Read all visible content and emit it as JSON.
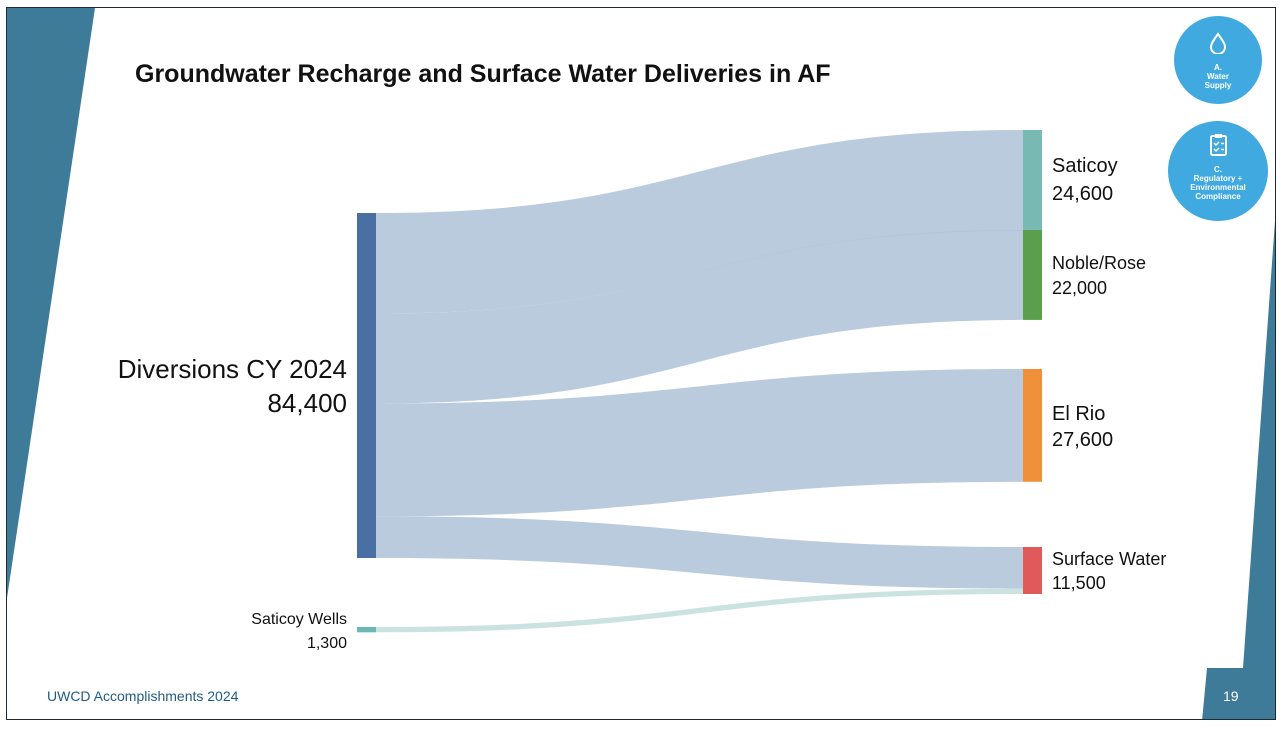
{
  "title": "Groundwater Recharge and Surface Water Deliveries in AF",
  "badges": [
    {
      "icon": "water-drop-icon",
      "letter": "A.",
      "text_line1": "Water",
      "text_line2": "Supply",
      "color": "#3fa9e0"
    },
    {
      "icon": "clipboard-checklist-icon",
      "letter": "C.",
      "text_line1": "Regulatory +",
      "text_line2": "Environmental",
      "text_line3": "Compliance",
      "color": "#3fa9e0"
    }
  ],
  "footer": {
    "text": "UWCD Accomplishments 2024",
    "page_number": "19"
  },
  "colors": {
    "slide_accent": "#3e7b98",
    "link_fill": "#aec2d8",
    "link_fill_wells": "#c5e0dd"
  },
  "chart_data": {
    "type": "sankey",
    "title": "Groundwater Recharge and Surface Water Deliveries in AF",
    "sources": [
      {
        "id": "diversions",
        "name": "Diversions CY 2024",
        "value_label": "84,400",
        "value": 84400,
        "color": "#4a70a3"
      },
      {
        "id": "wells",
        "name": "Saticoy Wells",
        "value_label": "1,300",
        "value": 1300,
        "color": "#6cb8b2"
      }
    ],
    "targets": [
      {
        "id": "saticoy",
        "name": "Saticoy",
        "value_label": "24,600",
        "value": 24600,
        "color": "#79b9b3"
      },
      {
        "id": "noble",
        "name": "Noble/Rose",
        "value_label": "22,000",
        "value": 22000,
        "color": "#5b9e4e"
      },
      {
        "id": "elrio",
        "name": "El Rio",
        "value_label": "27,600",
        "value": 27600,
        "color": "#f0903a"
      },
      {
        "id": "surface",
        "name": "Surface Water",
        "value_label": "11,500",
        "value": 11500,
        "color": "#e05a5c"
      }
    ],
    "links": [
      {
        "source": "diversions",
        "target": "saticoy",
        "value": 24600
      },
      {
        "source": "diversions",
        "target": "noble",
        "value": 22000
      },
      {
        "source": "diversions",
        "target": "elrio",
        "value": 27600
      },
      {
        "source": "diversions",
        "target": "surface",
        "value": 10200
      },
      {
        "source": "wells",
        "target": "surface",
        "value": 1300
      }
    ]
  }
}
